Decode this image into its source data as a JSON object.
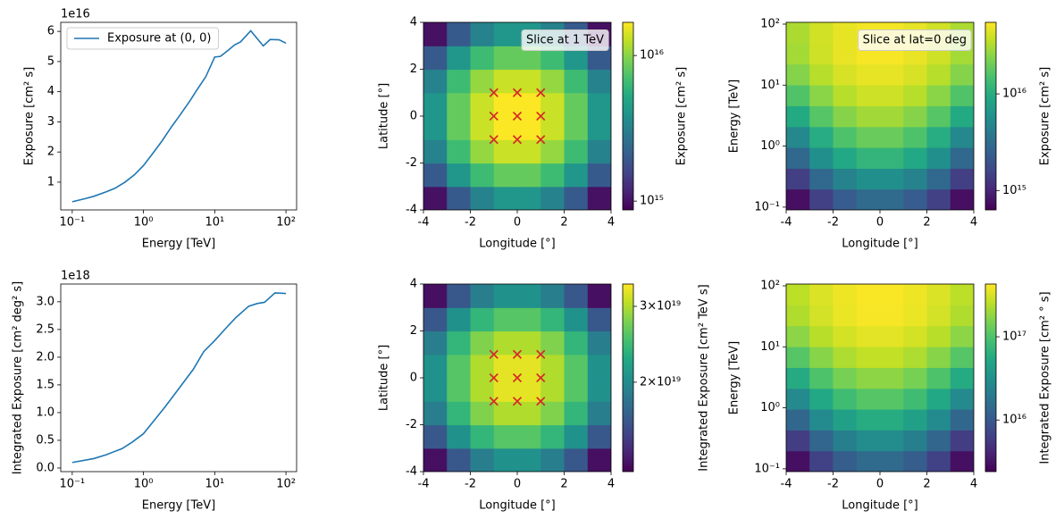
{
  "chart_data": [
    {
      "type": "line",
      "offset_label": "1e16",
      "xlabel": "Energy [TeV]",
      "ylabel": "Exposure [cm² s]",
      "xscale": "log",
      "x": [
        0.1,
        0.15,
        0.2,
        0.3,
        0.4,
        0.55,
        0.75,
        1,
        1.3,
        1.8,
        2.5,
        3.2,
        4.5,
        5.6,
        7.5,
        10,
        12,
        15,
        19,
        23,
        32,
        48,
        60,
        80,
        100
      ],
      "series": [
        {
          "name": "Exposure at (0, 0)",
          "color": "#1f77b4",
          "values": [
            0.35,
            0.45,
            0.53,
            0.68,
            0.8,
            1.0,
            1.25,
            1.55,
            1.9,
            2.35,
            2.85,
            3.2,
            3.7,
            4.05,
            4.5,
            5.15,
            5.17,
            5.35,
            5.55,
            5.65,
            6.02,
            5.52,
            5.73,
            5.72,
            5.61
          ]
        }
      ],
      "legend": "upper left",
      "xlim": [
        0.069,
        141
      ],
      "ylim": [
        0.08,
        6.3
      ],
      "xticks": [
        {
          "value": 0.1,
          "label": "10⁻¹"
        },
        {
          "value": 1,
          "label": "10⁰"
        },
        {
          "value": 10,
          "label": "10¹"
        },
        {
          "value": 100,
          "label": "10²"
        }
      ],
      "yticks": [
        1,
        2,
        3,
        4,
        5,
        6
      ]
    },
    {
      "type": "image",
      "xlabel": "Longitude [°]",
      "ylabel": "Latitude [°]",
      "annotation": "Slice at 1 TeV",
      "x_edges": [
        -4,
        -3,
        -2,
        -1,
        0,
        1,
        2,
        3,
        4
      ],
      "y_edges": [
        -4,
        -3,
        -2,
        -1,
        0,
        1,
        2,
        3,
        4
      ],
      "values": [
        [
          1000000000000000.0,
          2000000000000000.0,
          3200000000000000.0,
          4100000000000000.0,
          4100000000000000.0,
          3200000000000000.0,
          2000000000000000.0,
          1000000000000000.0
        ],
        [
          2000000000000000.0,
          4100000000000000.0,
          6600000000000000.0,
          8300000000000000.0,
          8300000000000000.0,
          6600000000000000.0,
          4100000000000000.0,
          2000000000000000.0
        ],
        [
          3200000000000000.0,
          6600000000000000.0,
          1.05e+16,
          1.33e+16,
          1.33e+16,
          1.05e+16,
          6600000000000000.0,
          3200000000000000.0
        ],
        [
          4100000000000000.0,
          8300000000000000.0,
          1.33e+16,
          1.68e+16,
          1.68e+16,
          1.33e+16,
          8300000000000000.0,
          4100000000000000.0
        ],
        [
          4100000000000000.0,
          8300000000000000.0,
          1.33e+16,
          1.68e+16,
          1.68e+16,
          1.33e+16,
          8300000000000000.0,
          4100000000000000.0
        ],
        [
          3200000000000000.0,
          6600000000000000.0,
          1.05e+16,
          1.33e+16,
          1.33e+16,
          1.05e+16,
          6600000000000000.0,
          3200000000000000.0
        ],
        [
          2000000000000000.0,
          4100000000000000.0,
          6600000000000000.0,
          8300000000000000.0,
          8300000000000000.0,
          6600000000000000.0,
          4100000000000000.0,
          2000000000000000.0
        ],
        [
          1000000000000000.0,
          2000000000000000.0,
          3200000000000000.0,
          4100000000000000.0,
          4100000000000000.0,
          3200000000000000.0,
          2000000000000000.0,
          1000000000000000.0
        ]
      ],
      "colormap": "viridis",
      "cscale": "log",
      "clim": [
        870000000000000.0,
        1.69e+16
      ],
      "colorbar_label": "Exposure [cm² s]",
      "cticks": [
        {
          "value": 1000000000000000.0,
          "label": "10¹⁵"
        },
        {
          "value": 1e+16,
          "label": "10¹⁶"
        }
      ],
      "markers": {
        "x": [
          -1,
          0,
          1,
          -1,
          0,
          1,
          -1,
          0,
          1
        ],
        "y": [
          1,
          1,
          1,
          0,
          0,
          0,
          -1,
          -1,
          -1
        ],
        "color": "#d62728"
      },
      "xlim": [
        -4,
        4
      ],
      "ylim": [
        -4,
        4
      ],
      "xticks": [
        -4,
        -2,
        0,
        2,
        4
      ],
      "yticks": [
        -4,
        -2,
        0,
        2,
        4
      ]
    },
    {
      "type": "image",
      "xlabel": "Longitude [°]",
      "ylabel": "Energy [TeV]",
      "annotation": "Slice at lat=0 deg",
      "yscale": "log",
      "x_edges": [
        -4,
        -3,
        -2,
        -1,
        0,
        1,
        2,
        3,
        4
      ],
      "y_edges": [
        0.09,
        0.198,
        0.434,
        0.954,
        2.09,
        4.6,
        10.1,
        22.2,
        48.7,
        107
      ],
      "values": [
        [
          750000000000000.0,
          1480000000000000.0,
          2330000000000000.0,
          2920000000000000.0,
          2920000000000000.0,
          2330000000000000.0,
          1480000000000000.0,
          750000000000000.0
        ],
        [
          1440000000000000.0,
          2900000000000000.0,
          4600000000000000.0,
          5800000000000000.0,
          5800000000000000.0,
          4600000000000000.0,
          2900000000000000.0,
          1440000000000000.0
        ],
        [
          2900000000000000.0,
          5800000000000000.0,
          9200000000000000.0,
          1.16e+16,
          1.16e+16,
          9200000000000000.0,
          5800000000000000.0,
          2900000000000000.0
        ],
        [
          5000000000000000.0,
          9900000000000000.0,
          1.55e+16,
          1.95e+16,
          1.95e+16,
          1.55e+16,
          9900000000000000.0,
          5000000000000000.0
        ],
        [
          9500000000000000.0,
          1.67e+16,
          2.43e+16,
          2.93e+16,
          2.93e+16,
          2.43e+16,
          1.67e+16,
          9500000000000000.0
        ],
        [
          1.59e+16,
          2.5e+16,
          3.37e+16,
          3.93e+16,
          3.93e+16,
          3.37e+16,
          2.5e+16,
          1.59e+16
        ],
        [
          2.4e+16,
          3.37e+16,
          4.23e+16,
          4.73e+16,
          4.73e+16,
          4.23e+16,
          3.37e+16,
          2.4e+16
        ],
        [
          2.98e+16,
          3.95e+16,
          4.76e+16,
          5.24e+16,
          5.24e+16,
          4.76e+16,
          3.95e+16,
          2.98e+16
        ],
        [
          3.13e+16,
          4.02e+16,
          4.73e+16,
          5.15e+16,
          5.15e+16,
          4.73e+16,
          4.02e+16,
          3.13e+16
        ]
      ],
      "colormap": "viridis",
      "cscale": "log",
      "clim": [
        630000000000000.0,
        5.5e+16
      ],
      "colorbar_label": "Exposure [cm² s]",
      "cticks": [
        {
          "value": 1000000000000000.0,
          "label": "10¹⁵"
        },
        {
          "value": 1e+16,
          "label": "10¹⁶"
        }
      ],
      "xlim": [
        -4,
        4
      ],
      "ylim": [
        0.09,
        107
      ],
      "xticks": [
        -4,
        -2,
        0,
        2,
        4
      ],
      "yticks": [
        {
          "value": 0.1,
          "label": "10⁻¹"
        },
        {
          "value": 1,
          "label": "10⁰"
        },
        {
          "value": 10,
          "label": "10¹"
        },
        {
          "value": 100,
          "label": "10²"
        }
      ]
    },
    {
      "type": "line",
      "offset_label": "1e18",
      "xlabel": "Energy [TeV]",
      "ylabel": "Integrated Exposure [cm² deg² s]",
      "xscale": "log",
      "x": [
        0.1,
        0.2,
        0.3,
        0.5,
        0.7,
        1,
        1.5,
        2,
        3,
        5,
        7,
        10,
        15,
        20,
        30,
        40,
        50,
        70,
        100
      ],
      "series": [
        {
          "color": "#1f77b4",
          "values": [
            0.1,
            0.17,
            0.24,
            0.35,
            0.47,
            0.62,
            0.9,
            1.1,
            1.4,
            1.78,
            2.1,
            2.3,
            2.55,
            2.72,
            2.92,
            2.97,
            2.99,
            3.16,
            3.15
          ]
        }
      ],
      "xlim": [
        0.069,
        141
      ],
      "ylim": [
        -0.065,
        3.32
      ],
      "xticks": [
        {
          "value": 0.1,
          "label": "10⁻¹"
        },
        {
          "value": 1,
          "label": "10⁰"
        },
        {
          "value": 10,
          "label": "10¹"
        },
        {
          "value": 100,
          "label": "10²"
        }
      ],
      "yticks": [
        {
          "value": 0,
          "label": "0.0"
        },
        0.5,
        {
          "value": 1,
          "label": "1.0"
        },
        1.5,
        {
          "value": 2,
          "label": "2.0"
        },
        2.5,
        {
          "value": 3,
          "label": "3.0"
        }
      ]
    },
    {
      "type": "image",
      "xlabel": "Longitude [°]",
      "ylabel": "Latitude [°]",
      "x_edges": [
        -4,
        -3,
        -2,
        -1,
        0,
        1,
        2,
        3,
        4
      ],
      "y_edges": [
        -4,
        -3,
        -2,
        -1,
        0,
        1,
        2,
        3,
        4
      ],
      "values": [
        [
          1.29e+19,
          1.63e+19,
          1.9e+19,
          2.05e+19,
          2.05e+19,
          1.9e+19,
          1.63e+19,
          1.29e+19
        ],
        [
          1.63e+19,
          2.05e+19,
          2.39e+19,
          2.58e+19,
          2.58e+19,
          2.39e+19,
          2.05e+19,
          1.63e+19
        ],
        [
          1.9e+19,
          2.39e+19,
          2.79e+19,
          3e+19,
          3e+19,
          2.79e+19,
          2.39e+19,
          1.9e+19
        ],
        [
          2.05e+19,
          2.58e+19,
          3e+19,
          3.25e+19,
          3.25e+19,
          3e+19,
          2.58e+19,
          2.05e+19
        ],
        [
          2.05e+19,
          2.58e+19,
          3e+19,
          3.25e+19,
          3.25e+19,
          3e+19,
          2.58e+19,
          2.05e+19
        ],
        [
          1.9e+19,
          2.39e+19,
          2.79e+19,
          3e+19,
          3e+19,
          2.79e+19,
          2.39e+19,
          1.9e+19
        ],
        [
          1.63e+19,
          2.05e+19,
          2.39e+19,
          2.58e+19,
          2.58e+19,
          2.39e+19,
          2.05e+19,
          1.63e+19
        ],
        [
          1.29e+19,
          1.63e+19,
          1.9e+19,
          2.05e+19,
          2.05e+19,
          1.9e+19,
          1.63e+19,
          1.29e+19
        ]
      ],
      "colormap": "viridis",
      "cscale": "log",
      "clim": [
        1.24e+19,
        3.38e+19
      ],
      "colorbar_label": "Integrated Exposure [cm² TeV s]",
      "cticks": [
        {
          "value": 2e+19,
          "label": "2×10¹⁹"
        },
        {
          "value": 3e+19,
          "label": "3×10¹⁹"
        }
      ],
      "markers": {
        "x": [
          -1,
          0,
          1,
          -1,
          0,
          1,
          -1,
          0,
          1
        ],
        "y": [
          1,
          1,
          1,
          0,
          0,
          0,
          -1,
          -1,
          -1
        ],
        "color": "#d62728"
      },
      "xlim": [
        -4,
        4
      ],
      "ylim": [
        -4,
        4
      ],
      "xticks": [
        -4,
        -2,
        0,
        2,
        4
      ],
      "yticks": [
        -4,
        -2,
        0,
        2,
        4
      ]
    },
    {
      "type": "image",
      "xlabel": "Longitude [°]",
      "ylabel": "Energy [TeV]",
      "yscale": "log",
      "x_edges": [
        -4,
        -3,
        -2,
        -1,
        0,
        1,
        2,
        3,
        4
      ],
      "y_edges": [
        0.09,
        0.198,
        0.434,
        0.954,
        2.09,
        4.6,
        10.1,
        22.2,
        48.7,
        107
      ],
      "values": [
        [
          3000000000000000.0,
          6600000000000000.0,
          1.11e+16,
          1.45e+16,
          1.45e+16,
          1.11e+16,
          6600000000000000.0,
          3000000000000000.0
        ],
        [
          6000000000000000.0,
          1.32e+16,
          2.23e+16,
          2.9e+16,
          2.9e+16,
          2.23e+16,
          1.32e+16,
          6000000000000000.0
        ],
        [
          1.34e+16,
          2.79e+16,
          4.55e+16,
          5.8e+16,
          5.8e+16,
          4.55e+16,
          2.79e+16,
          1.34e+16
        ],
        [
          2.76e+16,
          5.4e+16,
          8.5e+16,
          1.07e+17,
          1.07e+17,
          8.5e+16,
          5.4e+16,
          2.76e+16
        ],
        [
          5.7e+16,
          1e+17,
          1.46e+17,
          1.76e+17,
          1.76e+17,
          1.46e+17,
          1e+17,
          5.7e+16
        ],
        [
          1.07e+17,
          1.69e+17,
          2.28e+17,
          2.65e+17,
          2.65e+17,
          2.28e+17,
          1.69e+17,
          1.07e+17
        ],
        [
          1.75e+17,
          2.46e+17,
          3.08e+17,
          3.45e+17,
          3.45e+17,
          3.08e+17,
          2.46e+17,
          1.75e+17
        ],
        [
          2.31e+17,
          3.06e+17,
          3.69e+17,
          4.05e+17,
          4.05e+17,
          3.69e+17,
          3.06e+17,
          2.31e+17
        ],
        [
          2.53e+17,
          3.24e+17,
          3.82e+17,
          4.16e+17,
          4.16e+17,
          3.82e+17,
          3.24e+17,
          2.53e+17
        ]
      ],
      "colormap": "viridis",
      "cscale": "log",
      "clim": [
        2400000000000000.0,
        4.3e+17
      ],
      "colorbar_label": "Integrated Exposure [cm² ° s]",
      "cticks": [
        {
          "value": 1e+16,
          "label": "10¹⁶"
        },
        {
          "value": 1e+17,
          "label": "10¹⁷"
        }
      ],
      "xlim": [
        -4,
        4
      ],
      "ylim": [
        0.09,
        107
      ],
      "xticks": [
        -4,
        -2,
        0,
        2,
        4
      ],
      "yticks": [
        {
          "value": 0.1,
          "label": "10⁻¹"
        },
        {
          "value": 1,
          "label": "10⁰"
        },
        {
          "value": 10,
          "label": "10¹"
        },
        {
          "value": 100,
          "label": "10²"
        }
      ]
    }
  ]
}
